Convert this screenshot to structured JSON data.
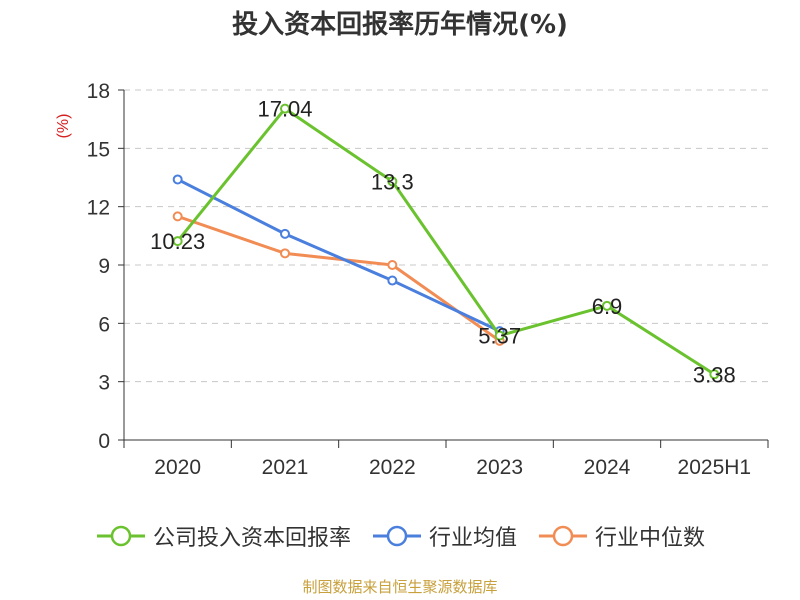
{
  "chart_data": {
    "type": "line",
    "title": "投入资本回报率历年情况(%)",
    "ylabel": "(%)",
    "categories": [
      "2020",
      "2021",
      "2022",
      "2023",
      "2024",
      "2025H1"
    ],
    "ylim": [
      0,
      18
    ],
    "yticks": [
      0,
      3,
      6,
      9,
      12,
      15,
      18
    ],
    "grid": true,
    "legend_position": "bottom",
    "series": [
      {
        "name": "公司投入资本回报率",
        "color": "#6ac22e",
        "values": [
          10.23,
          17.04,
          13.3,
          5.37,
          6.9,
          3.38
        ],
        "labels": [
          "10.23",
          "17.04",
          "13.3",
          "5.37",
          "6.9",
          "3.38"
        ]
      },
      {
        "name": "行业均值",
        "color": "#4a7fde",
        "values": [
          13.4,
          10.6,
          8.2,
          5.6,
          null,
          null
        ]
      },
      {
        "name": "行业中位数",
        "color": "#f28c55",
        "values": [
          11.5,
          9.6,
          9.0,
          5.1,
          null,
          null
        ]
      }
    ]
  },
  "source_note": "制图数据来自恒生聚源数据库"
}
